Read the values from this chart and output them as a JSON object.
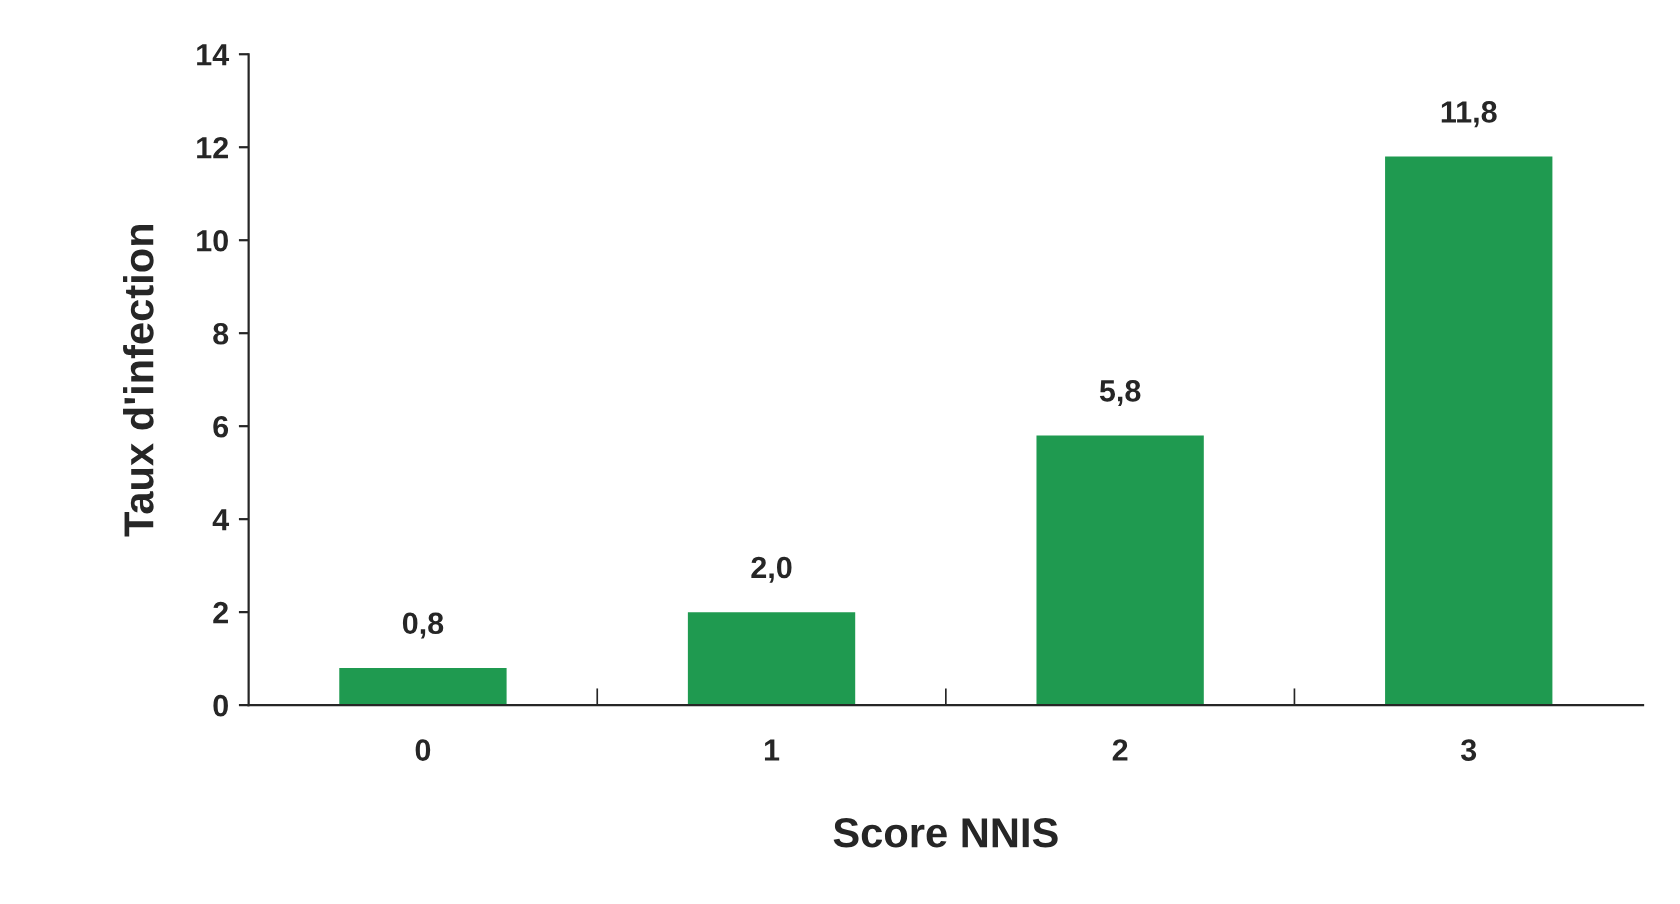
{
  "chart_data": {
    "type": "bar",
    "xlabel": "Score NNIS",
    "ylabel": "Taux d'infection",
    "categories": [
      "0",
      "1",
      "2",
      "3"
    ],
    "values": [
      0.8,
      2.0,
      5.8,
      11.8
    ],
    "value_labels": [
      "0,8",
      "2,0",
      "5,8",
      "11,8"
    ],
    "color": "#1f9a50",
    "ylim": [
      0,
      14
    ],
    "yticks": [
      0,
      2,
      4,
      6,
      8,
      10,
      12,
      14
    ],
    "grid": false
  }
}
